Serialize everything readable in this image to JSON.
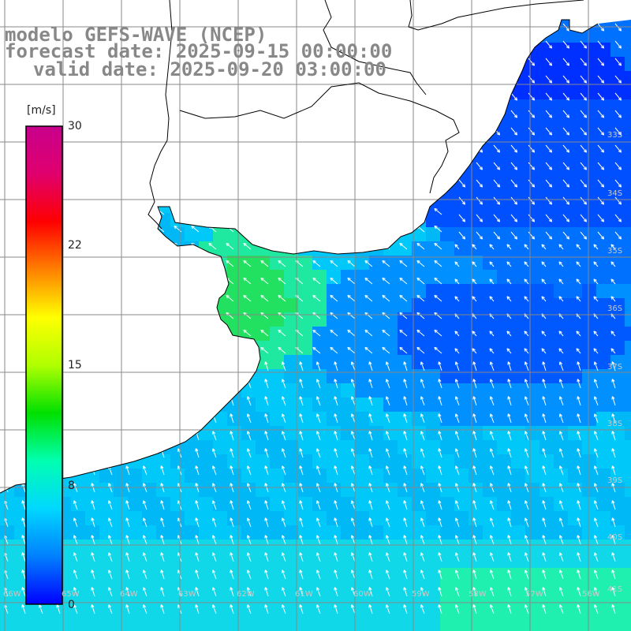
{
  "title": {
    "line1": "modelo GEFS-WAVE (NCEP)",
    "line2": "forecast date: 2025-09-15 00:00:00",
    "line3": "valid date: 2025-09-20 03:00:00"
  },
  "colorbar": {
    "unit": "[m/s]",
    "ticks": [
      "30",
      "22",
      "15",
      "8",
      "0"
    ],
    "tick_values": [
      30,
      22,
      15,
      8,
      0
    ],
    "range": [
      0,
      30
    ],
    "colors": [
      "#0000ff",
      "#0080ff",
      "#00d8ff",
      "#00ffb0",
      "#00e000",
      "#b0ff00",
      "#ffff00",
      "#ff8000",
      "#ff0000",
      "#e0006e",
      "#c8008c"
    ]
  },
  "lat_labels": [
    "33S",
    "34S",
    "35S",
    "36S",
    "37S",
    "38S",
    "39S",
    "40S",
    "41S"
  ],
  "lon_labels": [
    "66W",
    "65W",
    "64W",
    "63W",
    "62W",
    "61W",
    "60W",
    "59W",
    "58W",
    "57W",
    "56W",
    "55W",
    "54W"
  ],
  "colors": {
    "land": "#ffffff",
    "grid": "#888888",
    "coast": "#000000",
    "arrow": "#ffffff",
    "title": "#888888"
  }
}
